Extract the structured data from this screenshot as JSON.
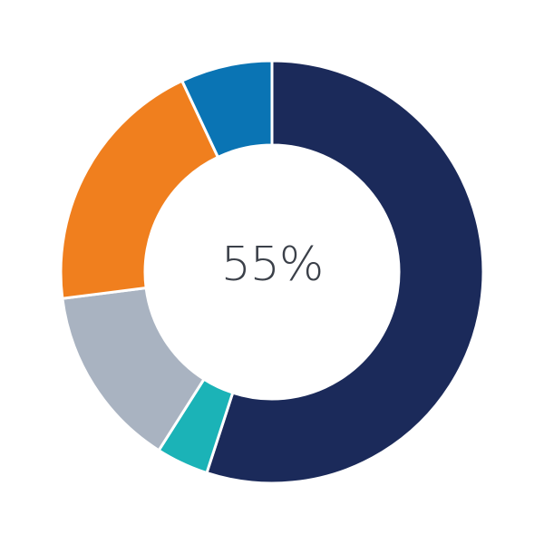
{
  "chart_data": {
    "type": "pie",
    "variant": "donut",
    "center_label": "55%",
    "start_angle": "top",
    "direction": "clockwise",
    "slices": [
      {
        "value": 55,
        "color": "#1b2a5a"
      },
      {
        "value": 4,
        "color": "#1bb3b7"
      },
      {
        "value": 14,
        "color": "#a9b3c1"
      },
      {
        "value": 20,
        "color": "#f07f1e"
      },
      {
        "value": 7,
        "color": "#0a74b4"
      }
    ]
  }
}
